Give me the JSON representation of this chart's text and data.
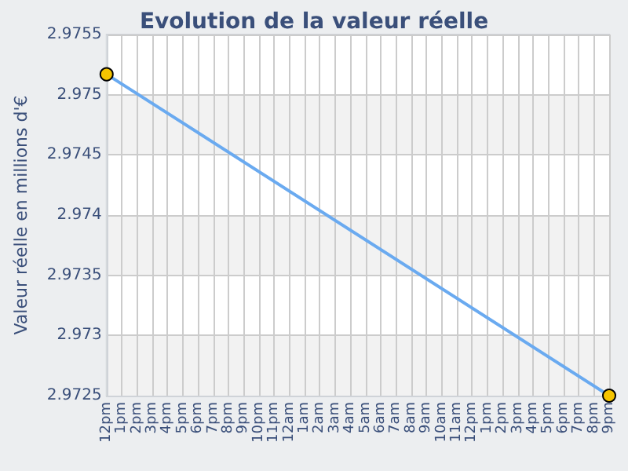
{
  "chart_data": {
    "type": "line",
    "title": "Evolution de la valeur réelle",
    "ylabel": "Valeur réelle en millions d'€",
    "categories": [
      "12pm",
      "1pm",
      "2pm",
      "3pm",
      "4pm",
      "5pm",
      "6pm",
      "7pm",
      "8pm",
      "9pm",
      "10pm",
      "11pm",
      "12am",
      "1am",
      "2am",
      "3am",
      "4am",
      "5am",
      "6am",
      "7am",
      "8am",
      "9am",
      "10am",
      "11am",
      "12pm",
      "1pm",
      "2pm",
      "3pm",
      "4pm",
      "5pm",
      "6pm",
      "7pm",
      "8pm",
      "9pm"
    ],
    "series": [
      {
        "color": "#6aaaf0",
        "values": [
          2.97517,
          null,
          null,
          null,
          null,
          null,
          null,
          null,
          null,
          null,
          null,
          null,
          null,
          null,
          null,
          null,
          null,
          null,
          null,
          null,
          null,
          null,
          null,
          null,
          null,
          null,
          null,
          null,
          null,
          null,
          null,
          null,
          null,
          2.9725
        ]
      }
    ],
    "ylim": [
      2.9725,
      2.9755
    ],
    "yticks": [
      2.9725,
      2.973,
      2.9735,
      2.974,
      2.9745,
      2.975,
      2.9755
    ],
    "grid": true,
    "marker": "circle",
    "line_style": "solid"
  }
}
